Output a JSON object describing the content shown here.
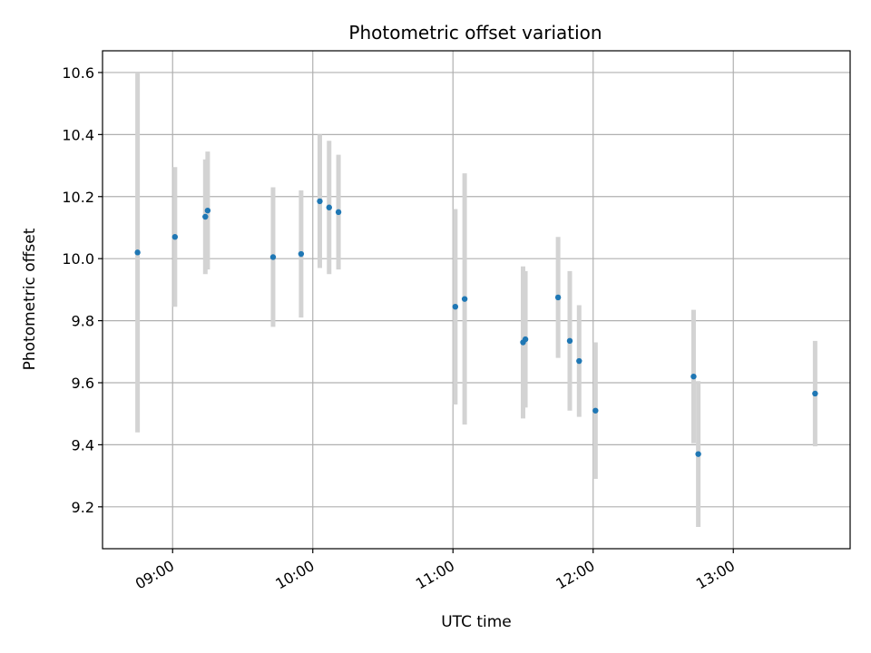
{
  "chart_data": {
    "type": "scatter",
    "title": "Photometric offset variation",
    "xlabel": "UTC time",
    "ylabel": "Photometric offset",
    "x_tick_labels": [
      "09:00",
      "10:00",
      "11:00",
      "12:00",
      "13:00"
    ],
    "x_ticks": [
      "09:00",
      "10:00",
      "11:00",
      "12:00",
      "13:00"
    ],
    "y_ticks": [
      9.2,
      9.4,
      9.6,
      9.8,
      10.0,
      10.2,
      10.4,
      10.6
    ],
    "y_tick_labels": [
      "9.2",
      "9.4",
      "9.6",
      "9.8",
      "10.0",
      "10.2",
      "10.4",
      "10.6"
    ],
    "xlim": [
      "08:30",
      "13:50"
    ],
    "ylim": [
      9.065,
      10.67
    ],
    "grid": true,
    "colors": {
      "points": "#1f77b4",
      "errorbars": "#d3d3d3",
      "grid": "#b0b0b0"
    },
    "points": [
      {
        "x": "08:45",
        "y": 10.02,
        "err": 0.58
      },
      {
        "x": "09:01",
        "y": 10.07,
        "err": 0.225
      },
      {
        "x": "09:14",
        "y": 10.135,
        "err": 0.185
      },
      {
        "x": "09:15",
        "y": 10.155,
        "err": 0.19
      },
      {
        "x": "09:43",
        "y": 10.005,
        "err": 0.225
      },
      {
        "x": "09:55",
        "y": 10.015,
        "err": 0.205
      },
      {
        "x": "10:03",
        "y": 10.185,
        "err": 0.215
      },
      {
        "x": "10:07",
        "y": 10.165,
        "err": 0.215
      },
      {
        "x": "10:11",
        "y": 10.15,
        "err": 0.185
      },
      {
        "x": "11:01",
        "y": 9.845,
        "err": 0.315
      },
      {
        "x": "11:05",
        "y": 9.87,
        "err": 0.405
      },
      {
        "x": "11:30",
        "y": 9.73,
        "err": 0.245
      },
      {
        "x": "11:31",
        "y": 9.74,
        "err": 0.22
      },
      {
        "x": "11:45",
        "y": 9.875,
        "err": 0.195
      },
      {
        "x": "11:50",
        "y": 9.735,
        "err": 0.225
      },
      {
        "x": "11:54",
        "y": 9.67,
        "err": 0.18
      },
      {
        "x": "12:01",
        "y": 9.51,
        "err": 0.22
      },
      {
        "x": "12:43",
        "y": 9.62,
        "err": 0.215
      },
      {
        "x": "12:45",
        "y": 9.37,
        "err": 0.235
      },
      {
        "x": "13:35",
        "y": 9.565,
        "err": 0.17
      }
    ]
  }
}
